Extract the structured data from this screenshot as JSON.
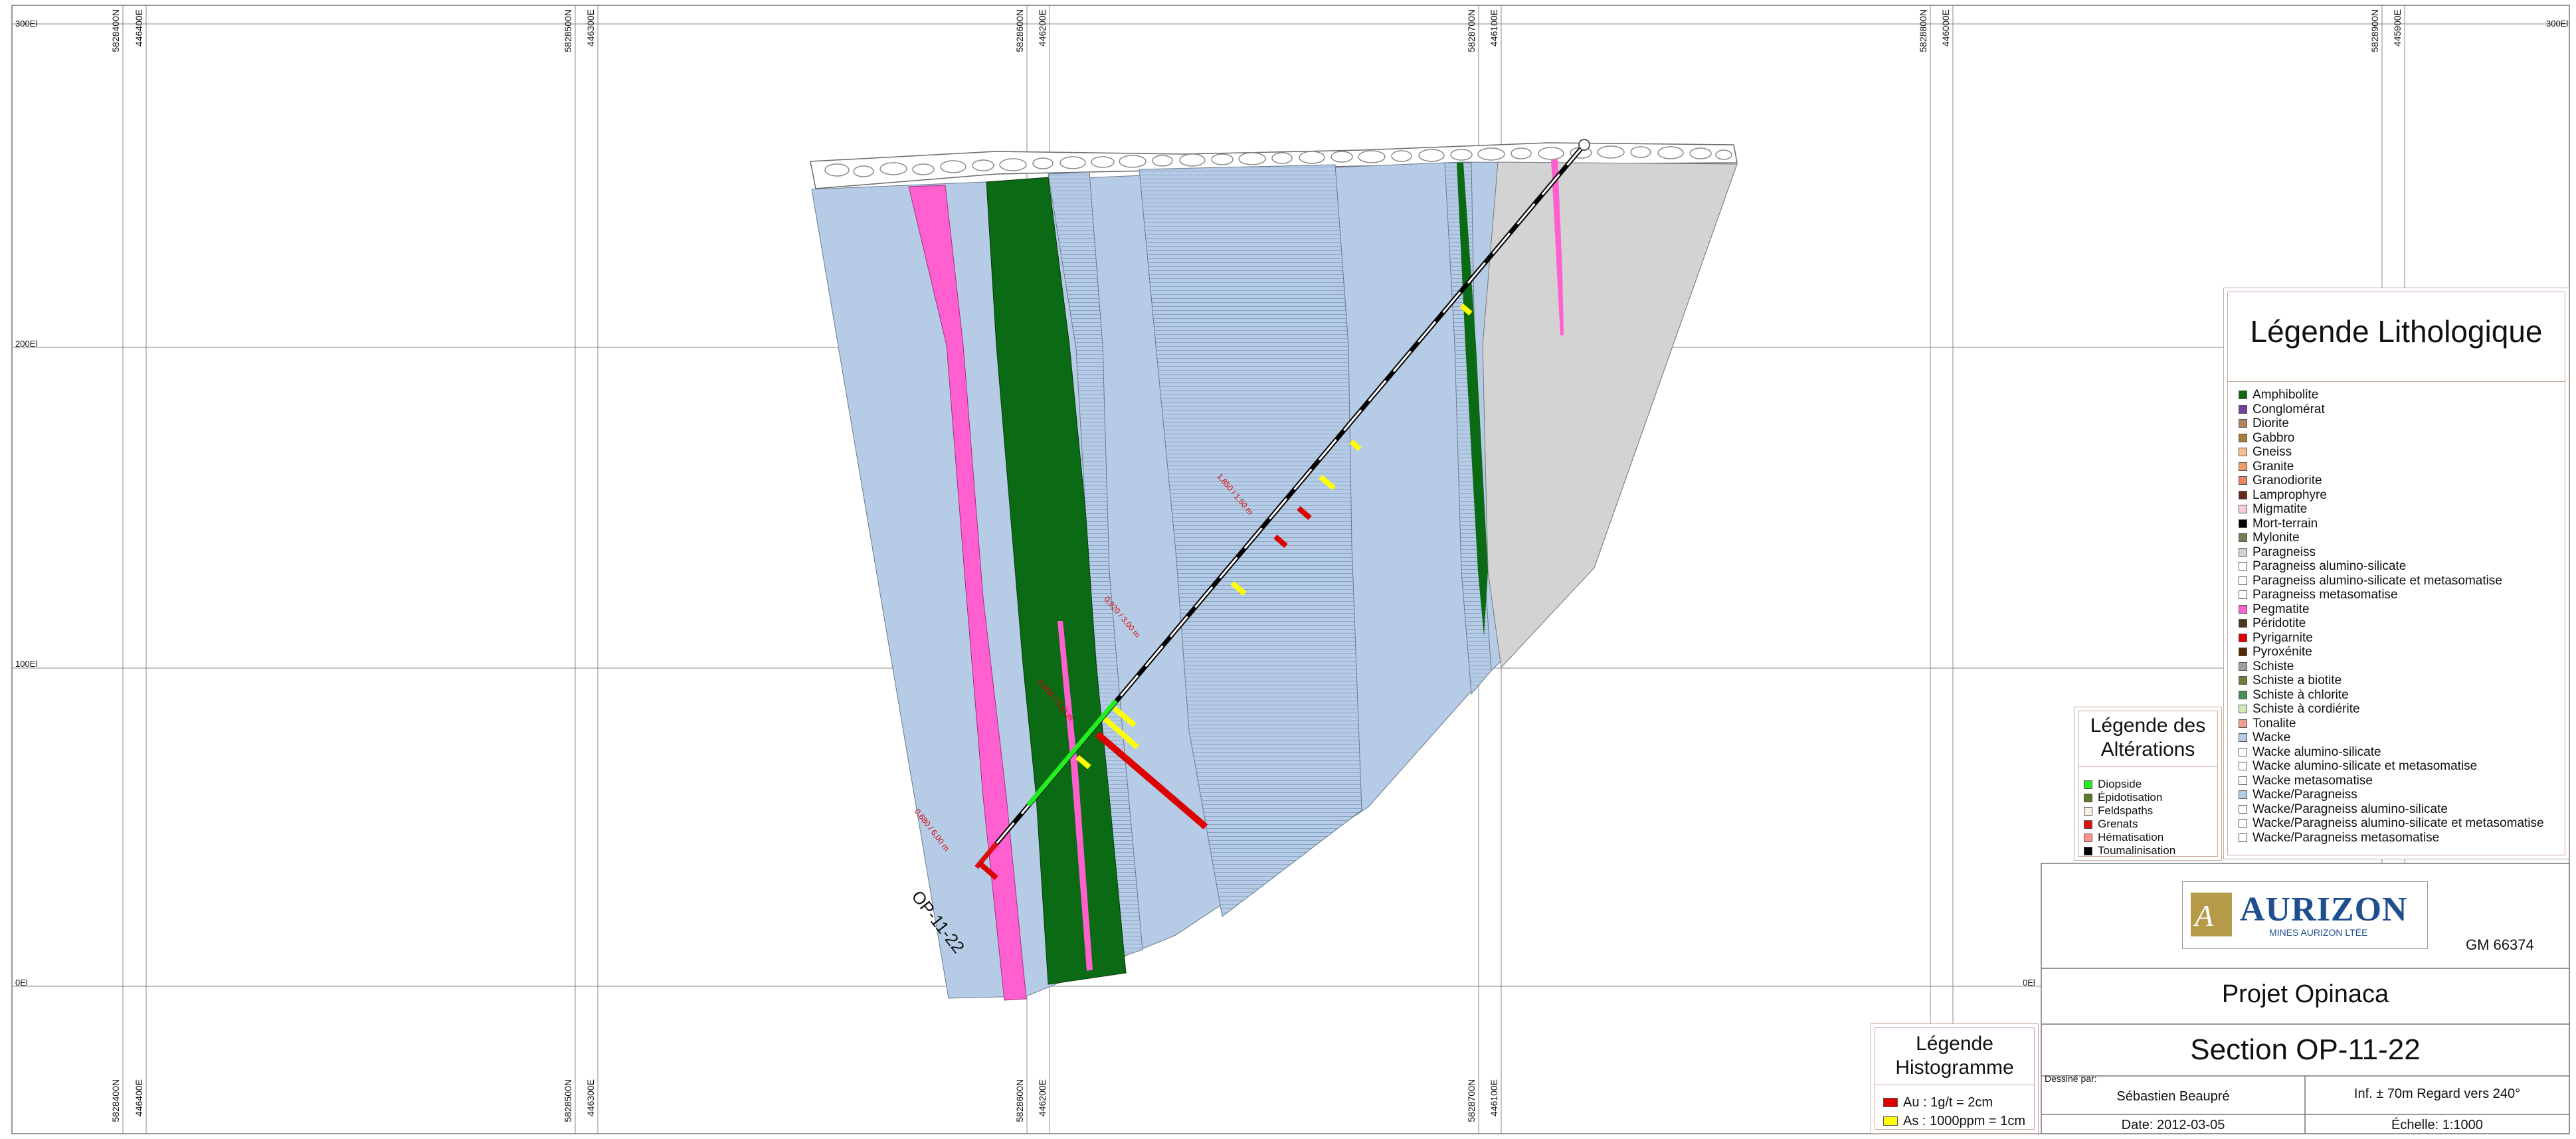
{
  "frame": {
    "top_left_elev": "300El",
    "top_right_elev": "300El",
    "left_elevations": [
      "200El",
      "100El",
      "0El"
    ],
    "right_elevation_0": "0El",
    "grid_labels": [
      {
        "n": "5828400N",
        "e": "446400E"
      },
      {
        "n": "5828500N",
        "e": "446300E"
      },
      {
        "n": "5828600N",
        "e": "446200E"
      },
      {
        "n": "5828700N",
        "e": "446100E"
      },
      {
        "n": "5828800N",
        "e": "446000E"
      },
      {
        "n": "5828900N",
        "e": "445900E"
      }
    ]
  },
  "drillhole": {
    "name": "OP-11-22",
    "assay_labels": [
      "0,680 / 6,00 m",
      "0,920 / 3,00 m",
      "1,850 / 1,50 m",
      "0,950 / 5,10 m"
    ]
  },
  "legend_litho": {
    "title": "Légende Lithologique",
    "items": [
      {
        "label": "Amphibolite",
        "color": "#0b6a14"
      },
      {
        "label": "Conglomérat",
        "color": "#7340a0"
      },
      {
        "label": "Diorite",
        "color": "#b3845c"
      },
      {
        "label": "Gabbro",
        "color": "#a87c3c"
      },
      {
        "label": "Gneiss",
        "color": "#f6c08c"
      },
      {
        "label": "Granite",
        "color": "#f29a6c"
      },
      {
        "label": "Granodiorite",
        "color": "#e9845c"
      },
      {
        "label": "Lamprophyre",
        "color": "#6a2a12"
      },
      {
        "label": "Migmatite",
        "color": "#f6cfd6"
      },
      {
        "label": "Mort-terrain",
        "color": "#000000"
      },
      {
        "label": "Mylonite",
        "color": "#7c7c50"
      },
      {
        "label": "Paragneiss",
        "color": "#d3d3d3"
      },
      {
        "label": "Paragneiss alumino-silicate",
        "color": "#ffffff"
      },
      {
        "label": "Paragneiss alumino-silicate et metasomatise",
        "color": "#ffffff"
      },
      {
        "label": "Paragneiss metasomatise",
        "color": "#ffffff"
      },
      {
        "label": "Pegmatite",
        "color": "#ff5fcf"
      },
      {
        "label": "Péridotite",
        "color": "#4a3a1a"
      },
      {
        "label": "Pyrigarnite",
        "color": "#dd0000"
      },
      {
        "label": "Pyroxénite",
        "color": "#5a2600"
      },
      {
        "label": "Schiste",
        "color": "#a0a0a0"
      },
      {
        "label": "Schiste a biotite",
        "color": "#6f7f3a"
      },
      {
        "label": "Schiste à chlorite",
        "color": "#4f8f4f"
      },
      {
        "label": "Schiste à cordiérite",
        "color": "#d6e6b6"
      },
      {
        "label": "Tonalite",
        "color": "#f0a090"
      },
      {
        "label": "Wacke",
        "color": "#b6cce6"
      },
      {
        "label": "Wacke alumino-silicate",
        "color": "#ffffff"
      },
      {
        "label": "Wacke alumino-silicate et metasomatise",
        "color": "#ffffff"
      },
      {
        "label": "Wacke metasomatise",
        "color": "#ffffff"
      },
      {
        "label": "Wacke/Paragneiss",
        "color": "#b6cce6"
      },
      {
        "label": "Wacke/Paragneiss alumino-silicate",
        "color": "#ffffff"
      },
      {
        "label": "Wacke/Paragneiss alumino-silicate et metasomatise",
        "color": "#ffffff"
      },
      {
        "label": "Wacke/Paragneiss metasomatise",
        "color": "#ffffff"
      }
    ]
  },
  "legend_alter": {
    "title_line1": "Légende des",
    "title_line2": "Altérations",
    "items": [
      {
        "label": "Diopside",
        "color": "#22ee22"
      },
      {
        "label": "Épidotisation",
        "color": "#5a7a2a"
      },
      {
        "label": "Feldspaths",
        "color": "#f6f0e6"
      },
      {
        "label": "Grenats",
        "color": "#dd1111"
      },
      {
        "label": "Hématisation",
        "color": "#ff9090"
      },
      {
        "label": "Toumalinisation",
        "color": "#000000"
      }
    ]
  },
  "legend_histo": {
    "title_line1": "Légende",
    "title_line2": "Histogramme",
    "items": [
      {
        "label": "Au : 1g/t    = 2cm",
        "color": "#dd0000"
      },
      {
        "label": "As : 1000ppm = 1cm",
        "color": "#ffff00"
      }
    ]
  },
  "title_block": {
    "company": "AURIZON",
    "company_sub": "MINES AURIZON LTÉE",
    "gm": "GM 66374",
    "project": "Projet Opinaca",
    "section": "Section OP-11-22",
    "drawn_by_label": "Dessiné par:",
    "drawn_by": "Sébastien Beaupré",
    "view": "Inf. ± 70m    Regard vers 240°",
    "date": "Date: 2012-03-05",
    "scale": "Échelle: 1:1000"
  },
  "colors": {
    "wacke": "#b6cce6",
    "amphibolite": "#0b6a14",
    "pegmatite": "#ff5fcf",
    "paragneiss": "#d3d3d3",
    "legend_border": "#c8a89a",
    "au": "#dd0000",
    "as": "#ffff00"
  }
}
